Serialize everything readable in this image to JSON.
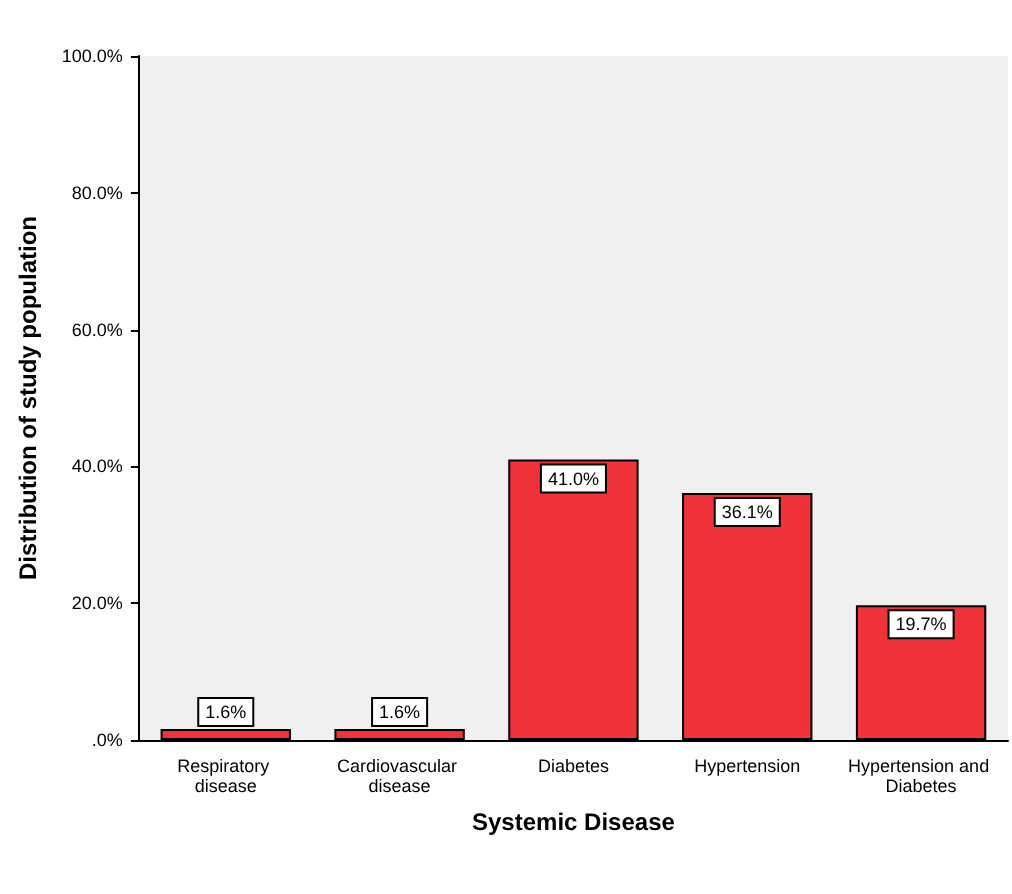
{
  "chart_data": {
    "type": "bar",
    "xlabel": "Systemic Disease",
    "ylabel": "Distribution of study population",
    "categories": [
      "Respiratory disease",
      "Cardiovascular disease",
      "Diabetes",
      "Hypertension",
      "Hypertension and Diabetes"
    ],
    "values": [
      1.6,
      1.6,
      41.0,
      36.1,
      19.7
    ],
    "value_labels": [
      "1.6%",
      "1.6%",
      "41.0%",
      "36.1%",
      "19.7%"
    ],
    "color": "#f0323a",
    "ylim": [
      0,
      100
    ],
    "yticks": [
      {
        "value": 0,
        "label": ".0%"
      },
      {
        "value": 20,
        "label": "20.0%"
      },
      {
        "value": 40,
        "label": "40.0%"
      },
      {
        "value": 60,
        "label": "60.0%"
      },
      {
        "value": 80,
        "label": "80.0%"
      },
      {
        "value": 100,
        "label": "100.0%"
      }
    ],
    "grid": false
  }
}
